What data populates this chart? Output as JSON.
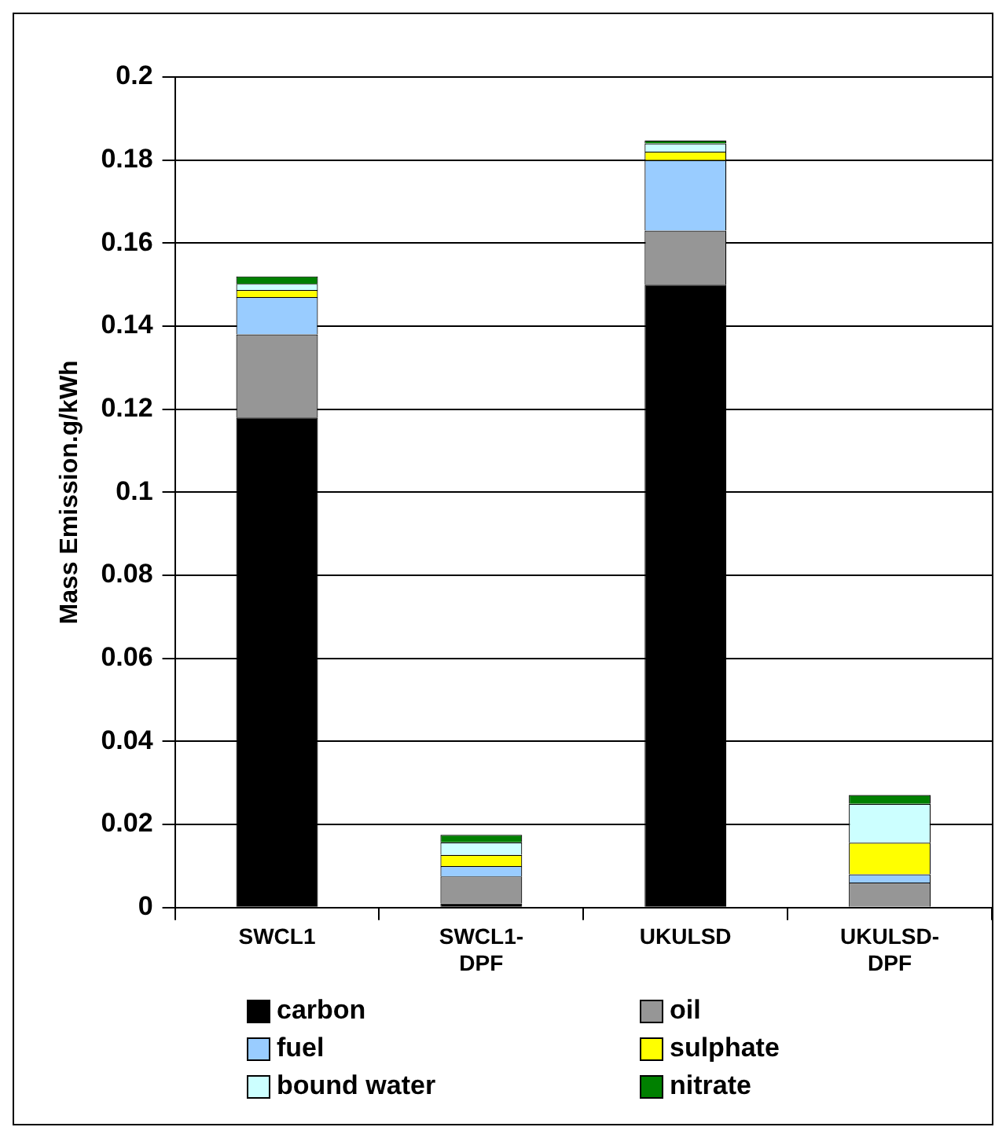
{
  "chart_data": {
    "type": "bar",
    "ylabel": "Mass Emission.g/kWh",
    "categories": [
      "SWCL1",
      "SWCL1-\nDPF",
      "UKULSD",
      "UKULSD-\nDPF"
    ],
    "stacked": true,
    "ylim": [
      0,
      0.2
    ],
    "yticks": [
      0,
      0.02,
      0.04,
      0.06,
      0.08,
      0.1,
      0.12,
      0.14,
      0.16,
      0.18,
      0.2
    ],
    "grid": "y",
    "legend": "bottom",
    "series": [
      {
        "name": "carbon",
        "color": "#000000",
        "values": [
          0.118,
          0.001,
          0.15,
          null
        ]
      },
      {
        "name": "oil",
        "color": "#969696",
        "values": [
          0.02,
          0.0065,
          0.013,
          0.006
        ]
      },
      {
        "name": "fuel",
        "color": "#99ccff",
        "values": [
          0.009,
          0.0025,
          0.017,
          0.002
        ]
      },
      {
        "name": "sulphate",
        "color": "#ffff00",
        "values": [
          0.0017,
          0.0027,
          0.002,
          0.0076
        ]
      },
      {
        "name": "bound water",
        "color": "#ccffff",
        "values": [
          0.0015,
          0.003,
          0.002,
          0.0094
        ]
      },
      {
        "name": "nitrate",
        "color": "#008000",
        "values": [
          0.0018,
          0.0018,
          0.0007,
          0.0021
        ]
      }
    ]
  }
}
